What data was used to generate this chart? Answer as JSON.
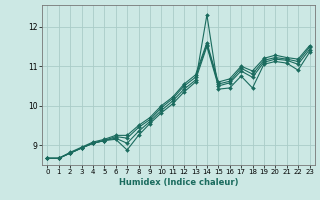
{
  "title": "",
  "xlabel": "Humidex (Indice chaleur)",
  "ylabel": "",
  "bg_color": "#cce8e4",
  "line_color": "#1a6b5e",
  "grid_color": "#aaccc8",
  "xlim": [
    -0.5,
    23.5
  ],
  "ylim": [
    8.5,
    12.55
  ],
  "yticks": [
    9,
    10,
    11,
    12
  ],
  "xticks": [
    0,
    1,
    2,
    3,
    4,
    5,
    6,
    7,
    8,
    9,
    10,
    11,
    12,
    13,
    14,
    15,
    16,
    17,
    18,
    19,
    20,
    21,
    22,
    23
  ],
  "lines": [
    [
      8.67,
      8.67,
      8.8,
      8.93,
      9.05,
      9.12,
      9.15,
      8.88,
      9.25,
      9.55,
      9.82,
      10.05,
      10.35,
      10.6,
      12.3,
      10.42,
      10.45,
      10.75,
      10.45,
      11.05,
      11.12,
      11.08,
      10.9,
      11.35
    ],
    [
      8.67,
      8.67,
      8.8,
      8.93,
      9.05,
      9.12,
      9.18,
      9.05,
      9.35,
      9.6,
      9.88,
      10.12,
      10.42,
      10.65,
      11.5,
      10.5,
      10.58,
      10.88,
      10.72,
      11.1,
      11.18,
      11.15,
      11.05,
      11.42
    ],
    [
      8.67,
      8.67,
      8.8,
      8.93,
      9.05,
      9.12,
      9.22,
      9.18,
      9.45,
      9.65,
      9.95,
      10.18,
      10.5,
      10.72,
      11.55,
      10.55,
      10.62,
      10.95,
      10.8,
      11.15,
      11.22,
      11.18,
      11.12,
      11.48
    ],
    [
      8.67,
      8.67,
      8.82,
      8.95,
      9.08,
      9.15,
      9.25,
      9.25,
      9.5,
      9.7,
      10.0,
      10.22,
      10.55,
      10.78,
      11.6,
      10.6,
      10.68,
      11.0,
      10.88,
      11.2,
      11.28,
      11.22,
      11.18,
      11.52
    ]
  ]
}
